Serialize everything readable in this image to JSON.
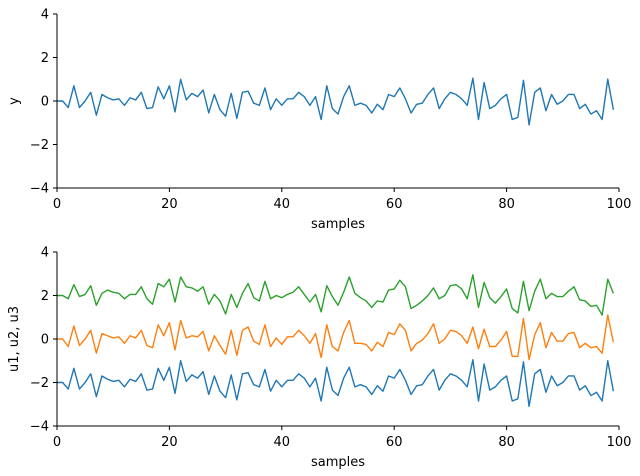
{
  "chart_data": [
    {
      "type": "line",
      "xlabel": "samples",
      "ylabel": "y",
      "xlim": [
        0,
        100
      ],
      "ylim": [
        -4,
        4
      ],
      "xticks": [
        "0",
        "20",
        "40",
        "60",
        "80",
        "100"
      ],
      "yticks": [
        "4",
        "2",
        "0",
        "−2",
        "−4"
      ],
      "series": [
        {
          "color": "#1f77b4",
          "x": [
            0,
            1,
            2,
            3,
            4,
            5,
            6,
            7,
            8,
            9,
            10,
            11,
            12,
            13,
            14,
            15,
            16,
            17,
            18,
            19,
            20,
            21,
            22,
            23,
            24,
            25,
            26,
            27,
            28,
            29,
            30,
            31,
            32,
            33,
            34,
            35,
            36,
            37,
            38,
            39,
            40,
            41,
            42,
            43,
            44,
            45,
            46,
            47,
            48,
            49,
            50,
            51,
            52,
            53,
            54,
            55,
            56,
            57,
            58,
            59,
            60,
            61,
            62,
            63,
            64,
            65,
            66,
            67,
            68,
            69,
            70,
            71,
            72,
            73,
            74,
            75,
            76,
            77,
            78,
            79,
            80,
            81,
            82,
            83,
            84,
            85,
            86,
            87,
            88,
            89,
            90,
            91,
            92,
            93,
            94,
            95,
            96,
            97,
            98,
            99
          ],
          "values": [
            0.0,
            0.0,
            -0.3,
            0.7,
            -0.3,
            0.0,
            0.4,
            -0.65,
            0.3,
            0.15,
            0.05,
            0.1,
            -0.2,
            0.15,
            0.05,
            0.4,
            -0.35,
            -0.3,
            0.65,
            0.1,
            0.7,
            -0.5,
            1.0,
            0.05,
            0.35,
            0.2,
            0.5,
            -0.55,
            0.3,
            -0.4,
            -0.7,
            0.35,
            -0.8,
            0.4,
            0.45,
            -0.1,
            -0.2,
            0.6,
            -0.4,
            0.1,
            -0.2,
            0.1,
            0.1,
            0.4,
            0.2,
            -0.2,
            0.2,
            -0.85,
            0.7,
            -0.35,
            -0.6,
            0.2,
            0.7,
            -0.2,
            -0.1,
            -0.2,
            -0.55,
            -0.15,
            -0.4,
            0.3,
            0.2,
            0.6,
            0.1,
            -0.55,
            -0.15,
            -0.1,
            0.3,
            0.6,
            -0.35,
            0.1,
            0.4,
            0.3,
            0.1,
            -0.2,
            1.05,
            -0.85,
            0.85,
            -0.35,
            -0.2,
            0.1,
            0.3,
            -0.85,
            -0.75,
            0.95,
            -1.1,
            0.4,
            0.6,
            -0.45,
            0.3,
            -0.15,
            0.0,
            0.3,
            0.3,
            -0.35,
            -0.15,
            -0.6,
            -0.45,
            -0.85,
            1.0,
            -0.4
          ]
        }
      ]
    },
    {
      "type": "line",
      "xlabel": "samples",
      "ylabel": "u1, u2, u3",
      "xlim": [
        0,
        100
      ],
      "ylim": [
        -4,
        4
      ],
      "xticks": [
        "0",
        "20",
        "40",
        "60",
        "80",
        "100"
      ],
      "yticks": [
        "4",
        "2",
        "0",
        "−2",
        "−4"
      ],
      "series": [
        {
          "color": "#2ca02c",
          "x": [
            0,
            1,
            2,
            3,
            4,
            5,
            6,
            7,
            8,
            9,
            10,
            11,
            12,
            13,
            14,
            15,
            16,
            17,
            18,
            19,
            20,
            21,
            22,
            23,
            24,
            25,
            26,
            27,
            28,
            29,
            30,
            31,
            32,
            33,
            34,
            35,
            36,
            37,
            38,
            39,
            40,
            41,
            42,
            43,
            44,
            45,
            46,
            47,
            48,
            49,
            50,
            51,
            52,
            53,
            54,
            55,
            56,
            57,
            58,
            59,
            60,
            61,
            62,
            63,
            64,
            65,
            66,
            67,
            68,
            69,
            70,
            71,
            72,
            73,
            74,
            75,
            76,
            77,
            78,
            79,
            80,
            81,
            82,
            83,
            84,
            85,
            86,
            87,
            88,
            89,
            90,
            91,
            92,
            93,
            94,
            95,
            96,
            97,
            98,
            99
          ],
          "values": [
            2.0,
            2.0,
            1.85,
            2.5,
            1.95,
            2.05,
            2.45,
            1.55,
            2.1,
            2.25,
            2.15,
            2.1,
            1.85,
            2.05,
            2.05,
            2.4,
            1.85,
            1.6,
            2.55,
            2.4,
            2.75,
            1.7,
            2.85,
            2.4,
            2.35,
            2.2,
            2.4,
            1.6,
            2.05,
            1.75,
            1.15,
            2.05,
            1.45,
            2.1,
            2.55,
            1.9,
            1.75,
            2.65,
            1.85,
            2.0,
            1.9,
            2.05,
            2.15,
            2.4,
            2.05,
            1.7,
            2.05,
            1.25,
            2.45,
            1.95,
            1.55,
            2.15,
            2.85,
            2.1,
            1.9,
            1.75,
            1.45,
            1.75,
            1.7,
            2.25,
            2.3,
            2.7,
            2.4,
            1.4,
            1.55,
            1.75,
            2.0,
            2.35,
            1.85,
            2.0,
            2.45,
            2.5,
            2.3,
            1.85,
            2.95,
            1.45,
            2.6,
            1.9,
            1.65,
            1.95,
            2.3,
            1.4,
            1.2,
            2.65,
            1.3,
            2.2,
            2.75,
            1.85,
            2.1,
            1.95,
            1.95,
            2.2,
            2.4,
            1.8,
            1.75,
            1.5,
            1.55,
            1.1,
            2.75,
            2.1
          ]
        },
        {
          "color": "#ff7f0e",
          "x": [
            0,
            1,
            2,
            3,
            4,
            5,
            6,
            7,
            8,
            9,
            10,
            11,
            12,
            13,
            14,
            15,
            16,
            17,
            18,
            19,
            20,
            21,
            22,
            23,
            24,
            25,
            26,
            27,
            28,
            29,
            30,
            31,
            32,
            33,
            34,
            35,
            36,
            37,
            38,
            39,
            40,
            41,
            42,
            43,
            44,
            45,
            46,
            47,
            48,
            49,
            50,
            51,
            52,
            53,
            54,
            55,
            56,
            57,
            58,
            59,
            60,
            61,
            62,
            63,
            64,
            65,
            66,
            67,
            68,
            69,
            70,
            71,
            72,
            73,
            74,
            75,
            76,
            77,
            78,
            79,
            80,
            81,
            82,
            83,
            84,
            85,
            86,
            87,
            88,
            89,
            90,
            91,
            92,
            93,
            94,
            95,
            96,
            97,
            98,
            99
          ],
          "values": [
            0.0,
            0.0,
            -0.35,
            0.6,
            -0.3,
            0.0,
            0.4,
            -0.65,
            0.25,
            0.15,
            0.05,
            0.1,
            -0.2,
            0.15,
            0.05,
            0.4,
            -0.3,
            -0.4,
            0.65,
            0.15,
            0.75,
            -0.5,
            0.85,
            0.05,
            0.15,
            0.1,
            0.35,
            -0.55,
            0.15,
            -0.3,
            -0.7,
            0.4,
            -0.75,
            0.4,
            0.55,
            -0.1,
            -0.25,
            0.65,
            -0.35,
            0.05,
            -0.25,
            0.1,
            0.1,
            0.4,
            0.15,
            -0.2,
            0.25,
            -0.85,
            0.65,
            -0.35,
            -0.55,
            0.3,
            0.85,
            -0.2,
            -0.2,
            -0.25,
            -0.55,
            -0.15,
            -0.35,
            0.3,
            0.2,
            0.7,
            0.4,
            -0.55,
            -0.2,
            -0.05,
            0.25,
            0.7,
            -0.2,
            0.0,
            0.4,
            0.35,
            0.15,
            -0.2,
            0.55,
            -0.45,
            0.45,
            -0.35,
            -0.35,
            -0.05,
            0.35,
            -0.8,
            -0.8,
            0.95,
            -0.95,
            0.2,
            0.75,
            -0.4,
            0.3,
            -0.1,
            -0.1,
            0.25,
            0.3,
            -0.4,
            -0.2,
            -0.4,
            -0.35,
            -0.65,
            1.1,
            -0.15
          ]
        },
        {
          "color": "#1f77b4",
          "x": [
            0,
            1,
            2,
            3,
            4,
            5,
            6,
            7,
            8,
            9,
            10,
            11,
            12,
            13,
            14,
            15,
            16,
            17,
            18,
            19,
            20,
            21,
            22,
            23,
            24,
            25,
            26,
            27,
            28,
            29,
            30,
            31,
            32,
            33,
            34,
            35,
            36,
            37,
            38,
            39,
            40,
            41,
            42,
            43,
            44,
            45,
            46,
            47,
            48,
            49,
            50,
            51,
            52,
            53,
            54,
            55,
            56,
            57,
            58,
            59,
            60,
            61,
            62,
            63,
            64,
            65,
            66,
            67,
            68,
            69,
            70,
            71,
            72,
            73,
            74,
            75,
            76,
            77,
            78,
            79,
            80,
            81,
            82,
            83,
            84,
            85,
            86,
            87,
            88,
            89,
            90,
            91,
            92,
            93,
            94,
            95,
            96,
            97,
            98,
            99
          ],
          "values": [
            -2.0,
            -2.0,
            -2.3,
            -1.35,
            -2.3,
            -2.0,
            -1.6,
            -2.65,
            -1.7,
            -1.85,
            -1.95,
            -1.9,
            -2.2,
            -1.85,
            -1.95,
            -1.6,
            -2.35,
            -2.3,
            -1.35,
            -1.9,
            -1.3,
            -2.5,
            -1.0,
            -1.95,
            -1.65,
            -1.8,
            -1.5,
            -2.55,
            -1.7,
            -2.4,
            -2.7,
            -1.65,
            -2.8,
            -1.6,
            -1.55,
            -2.1,
            -2.2,
            -1.4,
            -2.4,
            -1.9,
            -2.2,
            -1.9,
            -1.9,
            -1.6,
            -1.8,
            -2.2,
            -1.8,
            -2.85,
            -1.3,
            -2.35,
            -2.6,
            -1.8,
            -1.3,
            -2.2,
            -2.1,
            -2.2,
            -2.55,
            -2.15,
            -2.4,
            -1.7,
            -1.8,
            -1.4,
            -1.9,
            -2.55,
            -2.15,
            -2.1,
            -1.7,
            -1.4,
            -2.35,
            -1.9,
            -1.6,
            -1.7,
            -1.9,
            -2.2,
            -0.95,
            -2.85,
            -1.15,
            -2.35,
            -2.2,
            -1.9,
            -1.7,
            -2.85,
            -2.75,
            -1.05,
            -3.1,
            -1.6,
            -1.4,
            -2.45,
            -1.7,
            -2.15,
            -2.0,
            -1.7,
            -1.7,
            -2.35,
            -2.15,
            -2.6,
            -2.45,
            -2.85,
            -1.0,
            -2.4
          ]
        }
      ]
    }
  ]
}
